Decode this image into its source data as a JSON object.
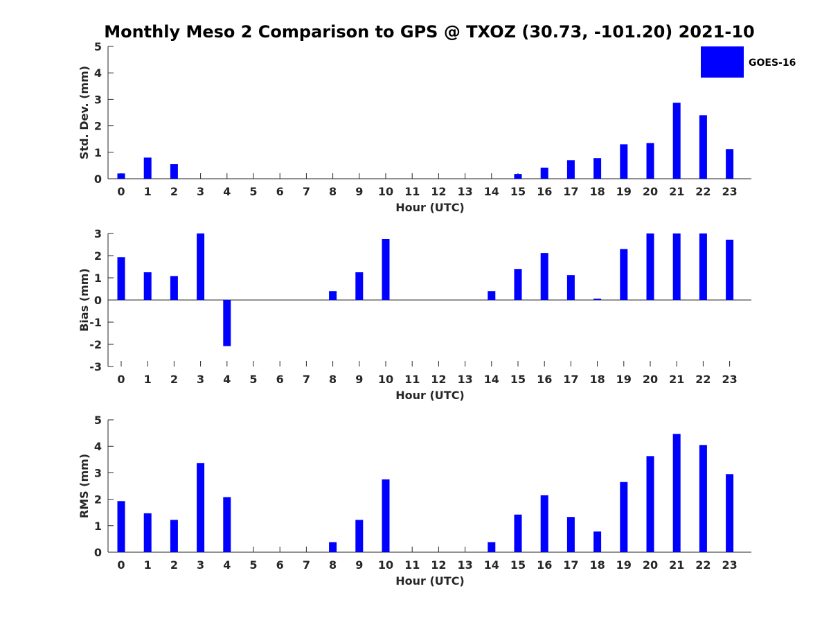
{
  "title": "Monthly Meso 2 Comparison to GPS @ TXOZ (30.73, -101.20) 2021-10",
  "legend": {
    "label": "GOES-16",
    "color": "#0000ff"
  },
  "chart_data": [
    {
      "type": "bar",
      "xlabel": "Hour (UTC)",
      "ylabel": "Std. Dev. (mm)",
      "ylim": [
        0,
        5
      ],
      "yticks": [
        0,
        1,
        2,
        3,
        4,
        5
      ],
      "categories": [
        "0",
        "1",
        "2",
        "3",
        "4",
        "5",
        "6",
        "7",
        "8",
        "9",
        "10",
        "11",
        "12",
        "13",
        "14",
        "15",
        "16",
        "17",
        "18",
        "19",
        "20",
        "21",
        "22",
        "23"
      ],
      "series": [
        {
          "name": "GOES-16",
          "color": "#0000ff",
          "values": [
            0.2,
            0.8,
            0.55,
            0,
            0,
            0,
            0,
            0,
            0,
            0,
            0,
            0,
            0,
            0,
            0,
            0.18,
            0.42,
            0.7,
            0.78,
            1.3,
            1.35,
            2.87,
            2.4,
            1.12
          ]
        }
      ]
    },
    {
      "type": "bar",
      "xlabel": "Hour (UTC)",
      "ylabel": "Bias (mm)",
      "ylim": [
        -3,
        3
      ],
      "yticks": [
        -3,
        -2,
        -1,
        0,
        1,
        2,
        3
      ],
      "categories": [
        "0",
        "1",
        "2",
        "3",
        "4",
        "5",
        "6",
        "7",
        "8",
        "9",
        "10",
        "11",
        "12",
        "13",
        "14",
        "15",
        "16",
        "17",
        "18",
        "19",
        "20",
        "21",
        "22",
        "23"
      ],
      "series": [
        {
          "name": "GOES-16",
          "color": "#0000ff",
          "values": [
            1.93,
            1.25,
            1.08,
            3.0,
            -2.08,
            0,
            0,
            0,
            0.4,
            1.25,
            2.75,
            0,
            0,
            0,
            0.4,
            1.4,
            2.12,
            1.12,
            0.06,
            2.3,
            3.0,
            3.0,
            3.0,
            2.72
          ]
        }
      ]
    },
    {
      "type": "bar",
      "xlabel": "Hour (UTC)",
      "ylabel": "RMS (mm)",
      "ylim": [
        0,
        5
      ],
      "yticks": [
        0,
        1,
        2,
        3,
        4,
        5
      ],
      "categories": [
        "0",
        "1",
        "2",
        "3",
        "4",
        "5",
        "6",
        "7",
        "8",
        "9",
        "10",
        "11",
        "12",
        "13",
        "14",
        "15",
        "16",
        "17",
        "18",
        "19",
        "20",
        "21",
        "22",
        "23"
      ],
      "series": [
        {
          "name": "GOES-16",
          "color": "#0000ff",
          "values": [
            1.93,
            1.47,
            1.22,
            3.37,
            2.08,
            0,
            0,
            0,
            0.38,
            1.22,
            2.75,
            0,
            0,
            0,
            0.38,
            1.42,
            2.15,
            1.33,
            0.78,
            2.65,
            3.63,
            4.47,
            4.05,
            2.95
          ]
        }
      ]
    }
  ]
}
